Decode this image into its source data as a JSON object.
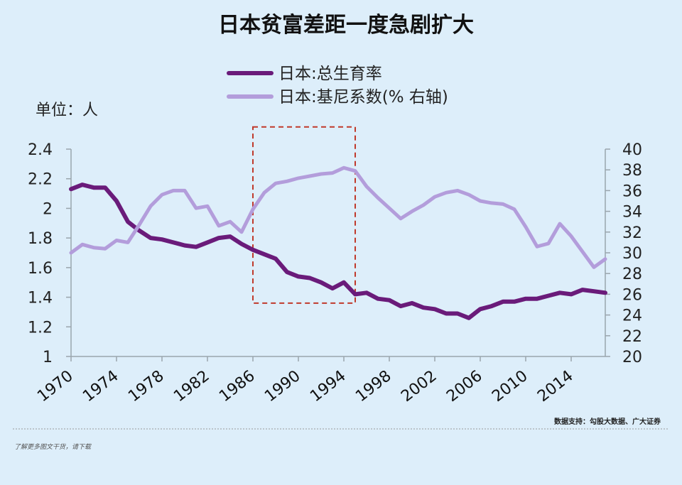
{
  "page": {
    "title": "日本贫富差距一度急剧扩大",
    "unit_label": "单位：人",
    "source": "数据支持：勾股大数据、广大证券",
    "footer": "了解更多图文干货，请下载"
  },
  "chart_data": {
    "type": "line",
    "title": "日本贫富差距一度急剧扩大",
    "legend_placement": "top",
    "grid": false,
    "x_ticks": [
      "1970",
      "1974",
      "1978",
      "1982",
      "1986",
      "1990",
      "1994",
      "1998",
      "2002",
      "2006",
      "2010",
      "2014"
    ],
    "xlim": [
      1970,
      2017
    ],
    "left_axis": {
      "ylim": [
        1,
        2.4
      ],
      "ticks": [
        "1",
        "1.2",
        "1.4",
        "1.6",
        "1.8",
        "2",
        "2.2",
        "2.4"
      ]
    },
    "right_axis": {
      "ylim": [
        20,
        40
      ],
      "ticks": [
        "20",
        "22",
        "24",
        "26",
        "28",
        "30",
        "32",
        "34",
        "36",
        "38",
        "40"
      ]
    },
    "highlight_range": {
      "x": [
        1986,
        1995
      ],
      "y_left": [
        1.36,
        2.55
      ],
      "color": "#c0392b"
    },
    "series": [
      {
        "name": "日本:总生育率",
        "axis": "left",
        "color": "#6a1b7a",
        "x": [
          1970,
          1971,
          1972,
          1973,
          1974,
          1975,
          1976,
          1977,
          1978,
          1979,
          1980,
          1981,
          1982,
          1983,
          1984,
          1985,
          1986,
          1987,
          1988,
          1989,
          1990,
          1991,
          1992,
          1993,
          1994,
          1995,
          1996,
          1997,
          1998,
          1999,
          2000,
          2001,
          2002,
          2003,
          2004,
          2005,
          2006,
          2007,
          2008,
          2009,
          2010,
          2011,
          2012,
          2013,
          2014,
          2015,
          2016,
          2017
        ],
        "values": [
          2.13,
          2.16,
          2.14,
          2.14,
          2.05,
          1.91,
          1.85,
          1.8,
          1.79,
          1.77,
          1.75,
          1.74,
          1.77,
          1.8,
          1.81,
          1.76,
          1.72,
          1.69,
          1.66,
          1.57,
          1.54,
          1.53,
          1.5,
          1.46,
          1.5,
          1.42,
          1.43,
          1.39,
          1.38,
          1.34,
          1.36,
          1.33,
          1.32,
          1.29,
          1.29,
          1.26,
          1.32,
          1.34,
          1.37,
          1.37,
          1.39,
          1.39,
          1.41,
          1.43,
          1.42,
          1.45,
          1.44,
          1.43
        ]
      },
      {
        "name": "日本:基尼系数(% 右轴)",
        "axis": "right",
        "color": "#b39ddb",
        "x": [
          1970,
          1971,
          1972,
          1973,
          1974,
          1975,
          1976,
          1977,
          1978,
          1979,
          1980,
          1981,
          1982,
          1983,
          1984,
          1985,
          1986,
          1987,
          1988,
          1989,
          1990,
          1991,
          1992,
          1993,
          1994,
          1995,
          1996,
          1997,
          1998,
          1999,
          2000,
          2001,
          2002,
          2003,
          2004,
          2005,
          2006,
          2007,
          2008,
          2009,
          2010,
          2011,
          2012,
          2013,
          2014,
          2015,
          2016,
          2017
        ],
        "values": [
          30.0,
          30.8,
          30.5,
          30.4,
          31.2,
          31.0,
          32.7,
          34.5,
          35.6,
          36.0,
          36.0,
          34.3,
          34.5,
          32.6,
          33.0,
          32.0,
          34.2,
          35.8,
          36.7,
          36.9,
          37.2,
          37.4,
          37.6,
          37.7,
          38.2,
          37.9,
          36.4,
          35.3,
          34.3,
          33.3,
          34.0,
          34.6,
          35.4,
          35.8,
          36.0,
          35.6,
          35.0,
          34.8,
          34.7,
          34.2,
          32.5,
          30.6,
          30.9,
          32.8,
          31.6,
          30.1,
          28.6,
          29.4
        ]
      }
    ]
  }
}
